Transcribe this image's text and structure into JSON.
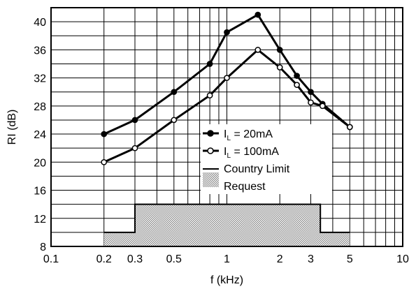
{
  "chart_data": {
    "type": "line",
    "xlabel": "f (kHz)",
    "ylabel": "RI (dB)",
    "xscale": "log",
    "xlim": [
      0.1,
      10
    ],
    "ylim": [
      8,
      42
    ],
    "x_ticks": [
      0.1,
      0.2,
      0.3,
      0.5,
      1,
      2,
      3,
      5,
      10
    ],
    "x_tick_labels": [
      "0.1",
      "0.2",
      "0.3",
      "0.5",
      "1",
      "2",
      "3",
      "5",
      "10"
    ],
    "y_ticks": [
      8,
      12,
      16,
      20,
      24,
      28,
      32,
      36,
      40
    ],
    "y_tick_labels": [
      "8",
      "12",
      "16",
      "20",
      "24",
      "28",
      "32",
      "36",
      "40"
    ],
    "grid": true,
    "legend_position": "center-right",
    "series": [
      {
        "name_main": "I",
        "name_sub": "L",
        "name_rest": " = 20mA",
        "marker": "filled-circle",
        "color": "#000000",
        "x": [
          0.2,
          0.3,
          0.5,
          0.8,
          1.0,
          1.5,
          2.0,
          2.5,
          3.0,
          3.5,
          5.0
        ],
        "y": [
          24.0,
          26.0,
          30.0,
          34.0,
          38.5,
          41.0,
          36.0,
          32.3,
          30.0,
          28.3,
          25.0
        ]
      },
      {
        "name_main": "I",
        "name_sub": "L",
        "name_rest": " = 100mA",
        "marker": "open-circle",
        "color": "#000000",
        "x": [
          0.2,
          0.3,
          0.5,
          0.8,
          1.0,
          1.5,
          2.0,
          2.5,
          3.0,
          3.5,
          5.0
        ],
        "y": [
          20.0,
          22.0,
          26.0,
          29.5,
          32.0,
          36.0,
          33.5,
          31.0,
          28.5,
          28.0,
          25.0
        ]
      }
    ],
    "country_limit": {
      "name": "Country Limit",
      "x": [
        0.2,
        0.3,
        0.3,
        3.4,
        3.4,
        5.0
      ],
      "y": [
        10,
        10,
        14,
        14,
        10,
        10
      ]
    },
    "request": {
      "name": "Request",
      "fill": "dotted-gray"
    }
  }
}
